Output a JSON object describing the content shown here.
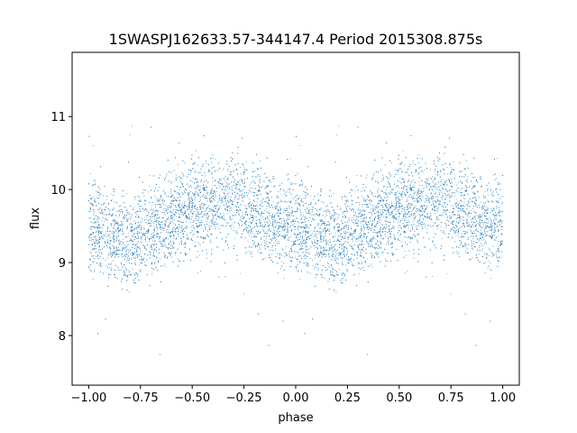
{
  "chart_data": {
    "type": "scatter",
    "title": "1SWASPJ162633.57-344147.4 Period 2015308.875s",
    "xlabel": "phase",
    "ylabel": "flux",
    "xlim": [
      -1.08,
      1.08
    ],
    "ylim": [
      7.32,
      11.88
    ],
    "xticks": [
      -1.0,
      -0.75,
      -0.5,
      -0.25,
      0.0,
      0.25,
      0.5,
      0.75,
      1.0
    ],
    "xtick_labels": [
      "−1.00",
      "−0.75",
      "−0.50",
      "−0.25",
      "0.00",
      "0.25",
      "0.50",
      "0.75",
      "1.00"
    ],
    "yticks": [
      8,
      9,
      10,
      11
    ],
    "ytick_labels": [
      "8",
      "9",
      "10",
      "11"
    ],
    "grid": false,
    "marker_color": "#1f77b4",
    "series": [
      {
        "description_points": "dense phased light curve, mirrored over phase -1..1",
        "profile_phase": [
          0.0,
          0.1,
          0.2,
          0.3,
          0.4,
          0.5,
          0.6,
          0.7,
          0.8,
          0.9,
          1.0
        ],
        "profile_flux": [
          9.55,
          9.35,
          9.3,
          9.45,
          9.6,
          9.75,
          9.8,
          9.85,
          9.7,
          9.55,
          9.55
        ]
      }
    ]
  }
}
